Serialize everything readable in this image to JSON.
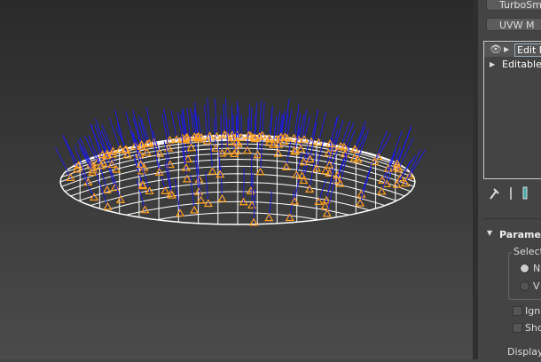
{
  "panel": {
    "buttons": [
      "TurboSm",
      "UVW M"
    ],
    "stack": [
      "Edit N",
      "Editable"
    ],
    "rollout": {
      "title": "Paramet",
      "group": "Select",
      "radios": [
        "N",
        "V"
      ],
      "checks": [
        "Igno",
        "Sho"
      ],
      "display": "Display"
    }
  }
}
